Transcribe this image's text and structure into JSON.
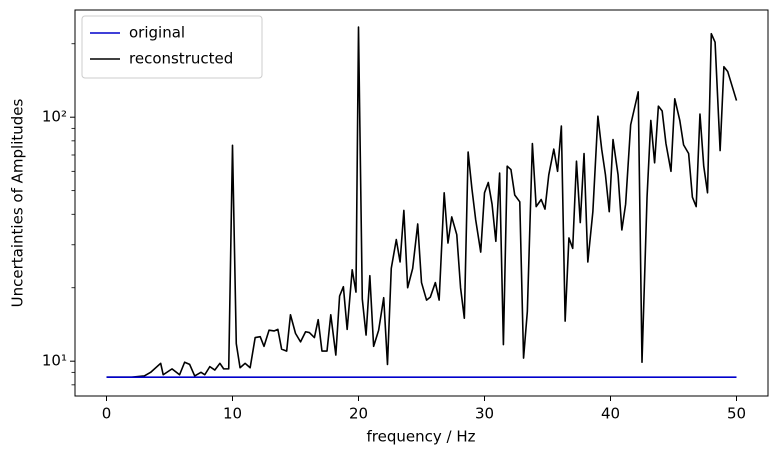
{
  "chart_data": {
    "type": "line",
    "xlabel": "frequency / Hz",
    "ylabel": "Uncertainties of Amplitudes",
    "log_y": true,
    "legend": "upper left",
    "xlim": [
      -2.5,
      52.5
    ],
    "ylim": [
      7.2,
      275
    ],
    "xticks": [
      0,
      10,
      20,
      30,
      40,
      50
    ],
    "yticks": [
      {
        "value": 10,
        "label": "10¹"
      },
      {
        "value": 100,
        "label": "10²"
      }
    ],
    "series": [
      {
        "name": "original",
        "color": "#0000cc",
        "x": [
          0,
          50
        ],
        "values": [
          8.6,
          8.6
        ]
      },
      {
        "name": "reconstructed",
        "color": "#000000",
        "x": [
          0,
          1,
          2,
          3,
          3.5,
          4.3,
          4.5,
          5.2,
          5.8,
          6.2,
          6.6,
          7,
          7.5,
          7.8,
          8.2,
          8.6,
          9,
          9.3,
          9.7,
          10,
          10.3,
          10.6,
          11,
          11.4,
          11.8,
          12.2,
          12.5,
          12.9,
          13.3,
          13.6,
          13.9,
          14.3,
          14.6,
          15,
          15.4,
          15.8,
          16.1,
          16.5,
          16.8,
          17.1,
          17.5,
          17.8,
          18.2,
          18.5,
          18.8,
          19.1,
          19.5,
          19.8,
          20,
          20.3,
          20.6,
          20.9,
          21.2,
          21.6,
          22,
          22.3,
          22.6,
          23,
          23.3,
          23.6,
          23.9,
          24.3,
          24.7,
          25,
          25.4,
          25.7,
          26.1,
          26.4,
          26.8,
          27.1,
          27.4,
          27.8,
          28.1,
          28.4,
          28.7,
          29,
          29.3,
          29.7,
          30,
          30.3,
          30.6,
          30.9,
          31.2,
          31.5,
          31.8,
          32.1,
          32.4,
          32.8,
          33.1,
          33.4,
          33.8,
          34.1,
          34.5,
          34.8,
          35.1,
          35.5,
          35.8,
          36.1,
          36.4,
          36.7,
          37,
          37.3,
          37.6,
          37.9,
          38.2,
          38.6,
          39,
          39.3,
          39.6,
          39.9,
          40.2,
          40.6,
          40.9,
          41.2,
          41.6,
          42.2,
          42.5,
          42.9,
          43.2,
          43.5,
          43.8,
          44.1,
          44.4,
          44.8,
          45.1,
          45.5,
          45.8,
          46.2,
          46.5,
          46.8,
          47.1,
          47.4,
          47.7,
          48,
          48.3,
          48.7,
          49,
          49.3,
          50
        ],
        "values": [
          8.6,
          8.6,
          8.6,
          8.7,
          9.0,
          9.8,
          8.8,
          9.3,
          8.8,
          9.9,
          9.7,
          8.7,
          9.0,
          8.8,
          9.5,
          9.2,
          9.8,
          9.3,
          9.3,
          76.7,
          11.8,
          9.4,
          9.8,
          9.4,
          12.5,
          12.6,
          11.5,
          13.4,
          13.3,
          13.5,
          11.2,
          11.0,
          15.5,
          13.0,
          12.0,
          13.2,
          13.1,
          12.5,
          14.8,
          11.0,
          11.0,
          15.5,
          10.6,
          18.5,
          20.2,
          13.5,
          23.7,
          19.2,
          234,
          18,
          12.8,
          22.4,
          11.5,
          13.4,
          18.2,
          9.7,
          24,
          31.5,
          25.5,
          41.5,
          20,
          24,
          36.5,
          21,
          17.8,
          18.3,
          21,
          17.8,
          49,
          30.5,
          39,
          33,
          20,
          15,
          72,
          51,
          38,
          28,
          49,
          54,
          44,
          31,
          59,
          11.7,
          63,
          61,
          48,
          45,
          10.3,
          16,
          78,
          43,
          46,
          42,
          58,
          74,
          60,
          92,
          14.6,
          32,
          29,
          66,
          37,
          71,
          25.5,
          41,
          101,
          74,
          58,
          41,
          81,
          58,
          34.5,
          44,
          93,
          127,
          9.9,
          47,
          97,
          65,
          111,
          106,
          78,
          60,
          119,
          97,
          77,
          71,
          47,
          43,
          103,
          63,
          49,
          220,
          203,
          73,
          161,
          154,
          117
        ]
      }
    ]
  }
}
